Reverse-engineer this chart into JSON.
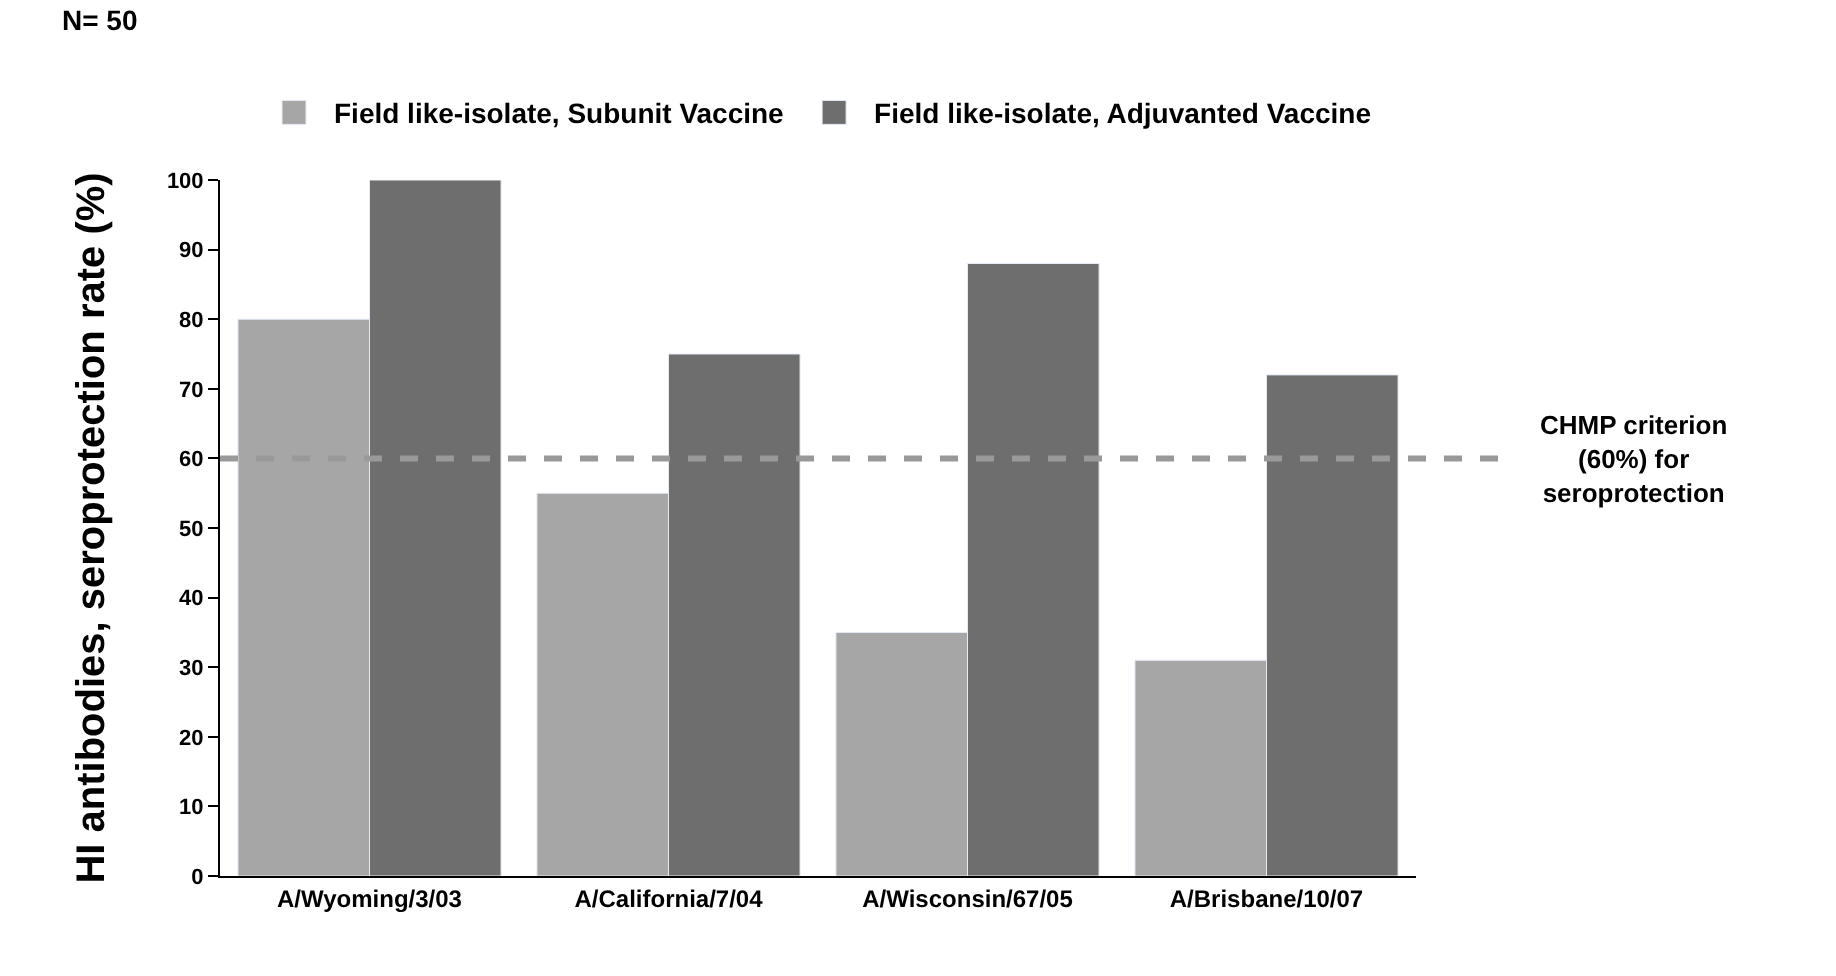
{
  "chart_data": {
    "type": "bar",
    "ylabel": "HI antibodies, seroprotection rate (%)",
    "categories": [
      "A/Wyoming/3/03",
      "A/California/7/04",
      "A/Wisconsin/67/05",
      "A/Brisbane/10/07"
    ],
    "series": [
      {
        "name": "Field like-isolate, Subunit Vaccine",
        "color": "#a6a6a6",
        "values": [
          80,
          55,
          35,
          31
        ]
      },
      {
        "name": "Field like-isolate, Adjuvanted Vaccine",
        "color": "#6e6e6e",
        "values": [
          100,
          75,
          88,
          72
        ]
      }
    ],
    "ylim": [
      0,
      100
    ],
    "yticks": [
      0,
      10,
      20,
      30,
      40,
      50,
      60,
      70,
      80,
      90,
      100
    ],
    "legend": "top",
    "ref_lines": [
      {
        "axis": "y",
        "value": 60,
        "label": "CHMP criterion\n(60%) for\nseroprotection",
        "color": "#999999",
        "line_style": "dashed"
      }
    ],
    "annotations": [
      "N= 50"
    ]
  }
}
